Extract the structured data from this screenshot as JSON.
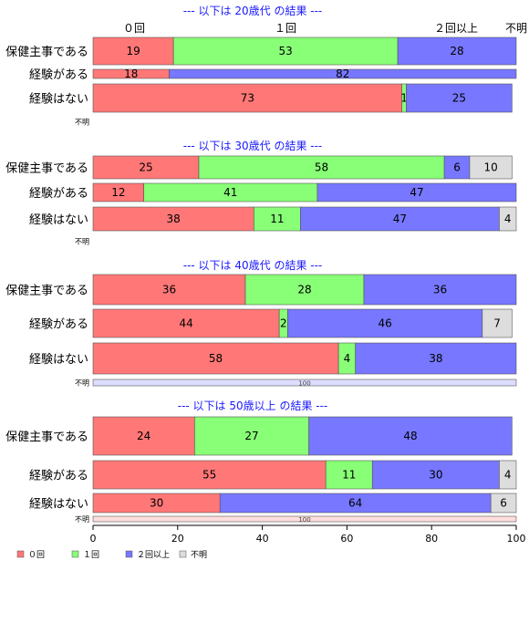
{
  "chart_data": {
    "type": "bar",
    "orientation": "horizontal",
    "stacked": true,
    "xlim": [
      0,
      100
    ],
    "xticks": [
      "0",
      "20",
      "40",
      "60",
      "80",
      "100"
    ],
    "column_headers": [
      "０回",
      "１回",
      "２回以上",
      "不明"
    ],
    "legend": {
      "placement": "bottom-left",
      "entries": [
        "０回",
        "１回",
        "２回以上",
        "不明"
      ]
    },
    "colors": {
      "０回": "#ff7777",
      "１回": "#88ff77",
      "２回以上": "#7777ff",
      "不明": "#dddddd"
    },
    "panels": [
      {
        "title": "--- 以下は 20歳代 の結果 ---",
        "categories": [
          "保健主事である",
          "経験がある",
          "経験はない",
          "不明"
        ],
        "series": [
          {
            "name": "０回",
            "values": [
              19,
              18,
              73,
              0
            ]
          },
          {
            "name": "１回",
            "values": [
              53,
              0,
              1,
              0
            ]
          },
          {
            "name": "２回以上",
            "values": [
              28,
              82,
              25,
              0
            ]
          },
          {
            "name": "不明",
            "values": [
              0,
              0,
              0,
              0
            ]
          }
        ]
      },
      {
        "title": "--- 以下は 30歳代 の結果 ---",
        "categories": [
          "保健主事である",
          "経験がある",
          "経験はない",
          "不明"
        ],
        "series": [
          {
            "name": "０回",
            "values": [
              25,
              12,
              38,
              0
            ]
          },
          {
            "name": "１回",
            "values": [
              58,
              41,
              11,
              0
            ]
          },
          {
            "name": "２回以上",
            "values": [
              6,
              47,
              47,
              0
            ]
          },
          {
            "name": "不明",
            "values": [
              10,
              0,
              4,
              0
            ]
          }
        ]
      },
      {
        "title": "--- 以下は 40歳代 の結果 ---",
        "categories": [
          "保健主事である",
          "経験がある",
          "経験はない",
          "不明"
        ],
        "series": [
          {
            "name": "０回",
            "values": [
              36,
              44,
              58,
              0
            ]
          },
          {
            "name": "１回",
            "values": [
              28,
              2,
              4,
              0
            ]
          },
          {
            "name": "２回以上",
            "values": [
              36,
              46,
              38,
              100
            ]
          },
          {
            "name": "不明",
            "values": [
              0,
              7,
              0,
              0
            ]
          }
        ]
      },
      {
        "title": "--- 以下は 50歳以上 の結果 ---",
        "categories": [
          "保健主事である",
          "経験がある",
          "経験はない",
          "不明"
        ],
        "series": [
          {
            "name": "０回",
            "values": [
              24,
              55,
              30,
              100
            ]
          },
          {
            "name": "１回",
            "values": [
              27,
              11,
              0,
              0
            ]
          },
          {
            "name": "２回以上",
            "values": [
              48,
              30,
              64,
              0
            ]
          },
          {
            "name": "不明",
            "values": [
              0,
              4,
              6,
              0
            ]
          }
        ]
      }
    ]
  }
}
